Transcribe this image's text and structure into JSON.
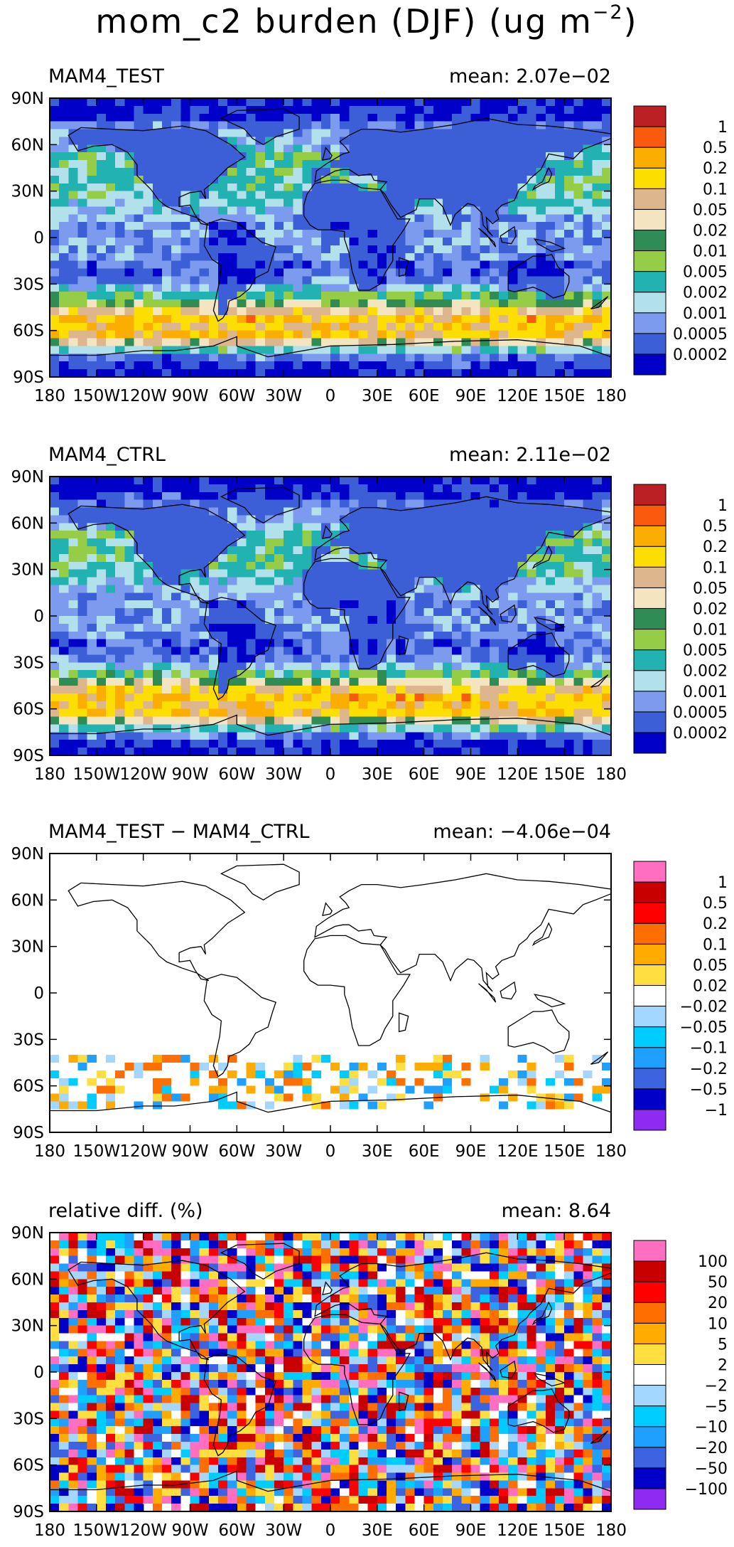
{
  "figure": {
    "title_main": "mom_c2 burden (DJF) (ug m",
    "title_exp": "−2",
    "title_close": ")"
  },
  "colors": {
    "absolute": [
      "#0000C8",
      "#3C5FD7",
      "#7C9BEE",
      "#B2E0EB",
      "#22B2B2",
      "#96CD46",
      "#308C55",
      "#F4E5C0",
      "#DDB68E",
      "#FCDF00",
      "#FBAD00",
      "#F95A0D",
      "#BB2024"
    ],
    "difference": [
      "#8E2AF1",
      "#0000C8",
      "#3C64E0",
      "#1FA0FF",
      "#00CDFF",
      "#A4D7FF",
      "#FFFFFF",
      "#FFDE3F",
      "#FFAB00",
      "#FF6E00",
      "#FF0000",
      "#C80000",
      "#FF6EC0"
    ],
    "land_outline": "#000000"
  },
  "chart_data": [
    {
      "type": "heatmap",
      "title": "MAM4_TEST",
      "mean_label": "mean: 2.07e−02",
      "x_ticklabels": [
        "180",
        "150W",
        "120W",
        "90W",
        "60W",
        "30W",
        "0",
        "30E",
        "60E",
        "90E",
        "120E",
        "150E",
        "180"
      ],
      "y_ticklabels": [
        "90S",
        "60S",
        "30S",
        "0",
        "30N",
        "60N",
        "90N"
      ],
      "xlim": [
        -180,
        180
      ],
      "ylim": [
        -90,
        90
      ],
      "colorbar_labels": [
        "0.0002",
        "0.0005",
        "0.001",
        "0.002",
        "0.005",
        "0.01",
        "0.02",
        "0.05",
        "0.1",
        "0.2",
        "0.5",
        "1"
      ],
      "colorbar_levels": [
        0.0002,
        0.0005,
        0.001,
        0.002,
        0.005,
        0.01,
        0.02,
        0.05,
        0.1,
        0.2,
        0.5,
        1
      ],
      "color_key": "absolute",
      "zonal_profile": {
        "lat": [
          -90,
          -85,
          -80,
          -75,
          -70,
          -65,
          -60,
          -55,
          -50,
          -45,
          -40,
          -35,
          -30,
          -20,
          -10,
          0,
          10,
          20,
          30,
          40,
          50,
          60,
          70,
          80,
          90
        ],
        "level_index": [
          0,
          0,
          1,
          2,
          5,
          9,
          9,
          9,
          8,
          6,
          4,
          3,
          1,
          0,
          1,
          1,
          1,
          2,
          3,
          3,
          3,
          3,
          2,
          0,
          0
        ]
      },
      "ocean_boost": 2
    },
    {
      "type": "heatmap",
      "title": "MAM4_CTRL",
      "mean_label": "mean: 2.11e−02",
      "x_ticklabels": [
        "180",
        "150W",
        "120W",
        "90W",
        "60W",
        "30W",
        "0",
        "30E",
        "60E",
        "90E",
        "120E",
        "150E",
        "180"
      ],
      "y_ticklabels": [
        "90S",
        "60S",
        "30S",
        "0",
        "30N",
        "60N",
        "90N"
      ],
      "xlim": [
        -180,
        180
      ],
      "ylim": [
        -90,
        90
      ],
      "colorbar_labels": [
        "0.0002",
        "0.0005",
        "0.001",
        "0.002",
        "0.005",
        "0.01",
        "0.02",
        "0.05",
        "0.1",
        "0.2",
        "0.5",
        "1"
      ],
      "colorbar_levels": [
        0.0002,
        0.0005,
        0.001,
        0.002,
        0.005,
        0.01,
        0.02,
        0.05,
        0.1,
        0.2,
        0.5,
        1
      ],
      "color_key": "absolute",
      "zonal_profile": {
        "lat": [
          -90,
          -85,
          -80,
          -75,
          -70,
          -65,
          -60,
          -55,
          -50,
          -45,
          -40,
          -35,
          -30,
          -20,
          -10,
          0,
          10,
          20,
          30,
          40,
          50,
          60,
          70,
          80,
          90
        ],
        "level_index": [
          0,
          0,
          1,
          2,
          5,
          9,
          9,
          9,
          8,
          7,
          4,
          3,
          1,
          0,
          1,
          1,
          1,
          2,
          3,
          3,
          3,
          3,
          2,
          0,
          0
        ]
      },
      "ocean_boost": 2
    },
    {
      "type": "heatmap",
      "title": "MAM4_TEST − MAM4_CTRL",
      "mean_label": "mean: −4.06e−04",
      "x_ticklabels": [
        "180",
        "150W",
        "120W",
        "90W",
        "60W",
        "30W",
        "0",
        "30E",
        "60E",
        "90E",
        "120E",
        "150E",
        "180"
      ],
      "y_ticklabels": [
        "90S",
        "60S",
        "30S",
        "0",
        "30N",
        "60N",
        "90N"
      ],
      "xlim": [
        -180,
        180
      ],
      "ylim": [
        -90,
        90
      ],
      "colorbar_labels": [
        "−1",
        "−0.5",
        "−0.2",
        "−0.1",
        "−0.05",
        "−0.02",
        "0.02",
        "0.05",
        "0.1",
        "0.2",
        "0.5",
        "1"
      ],
      "colorbar_levels": [
        -1,
        -0.5,
        -0.2,
        -0.1,
        -0.05,
        -0.02,
        0.02,
        0.05,
        0.1,
        0.2,
        0.5,
        1
      ],
      "color_key": "difference",
      "anomaly_band_lat": [
        -75,
        -40
      ],
      "anomaly_band_level_range": [
        3,
        9
      ]
    },
    {
      "type": "heatmap",
      "title": "relative diff. (%)",
      "mean_label": "mean:  8.64",
      "x_ticklabels": [
        "180",
        "150W",
        "120W",
        "90W",
        "60W",
        "30W",
        "0",
        "30E",
        "60E",
        "90E",
        "120E",
        "150E",
        "180"
      ],
      "y_ticklabels": [
        "90S",
        "60S",
        "30S",
        "0",
        "30N",
        "60N",
        "90N"
      ],
      "xlim": [
        -180,
        180
      ],
      "ylim": [
        -90,
        90
      ],
      "colorbar_labels": [
        "−100",
        "−50",
        "−20",
        "−10",
        "−5",
        "−2",
        "2",
        "5",
        "10",
        "20",
        "50",
        "100"
      ],
      "colorbar_levels": [
        -100,
        -50,
        -20,
        -10,
        -5,
        -2,
        2,
        5,
        10,
        20,
        50,
        100
      ],
      "color_key": "difference",
      "noise_level_range": [
        1,
        12
      ]
    }
  ]
}
